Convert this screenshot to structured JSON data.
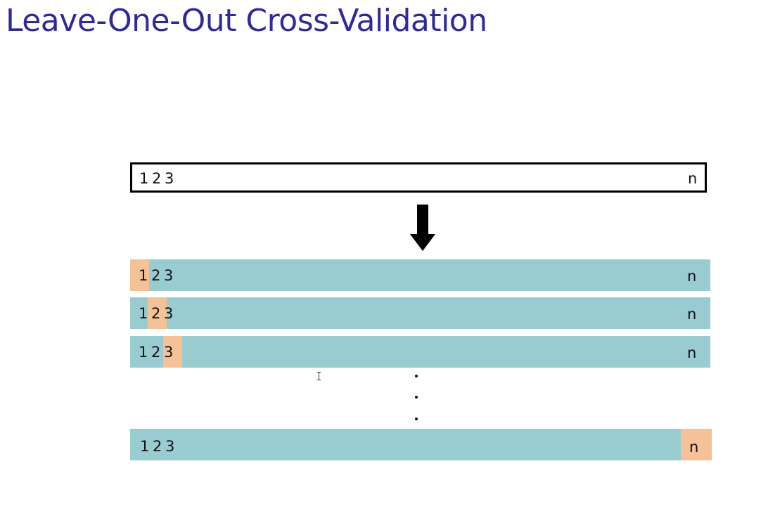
{
  "slide": {
    "title": "Leave-One-Out Cross-Validation"
  },
  "dataset_bar": {
    "index_labels": [
      "1",
      "2",
      "3"
    ],
    "last_label": "n"
  },
  "splits": [
    {
      "held_out_index": 1,
      "labels": [
        "1",
        "2",
        "3"
      ],
      "last_label": "n"
    },
    {
      "held_out_index": 2,
      "labels": [
        "1",
        "2",
        "3"
      ],
      "last_label": "n"
    },
    {
      "held_out_index": 3,
      "labels": [
        "1",
        "2",
        "3"
      ],
      "last_label": "n"
    },
    {
      "held_out_index": "n",
      "labels": [
        "1",
        "2",
        "3"
      ],
      "last_label": "n"
    }
  ],
  "colors": {
    "title": "#2f2a9c",
    "training": "#99ccd1",
    "validation": "#f5c196",
    "outline": "#000000"
  },
  "icons": [
    "down-arrow-icon",
    "ellipsis-dots",
    "text-cursor-icon"
  ]
}
